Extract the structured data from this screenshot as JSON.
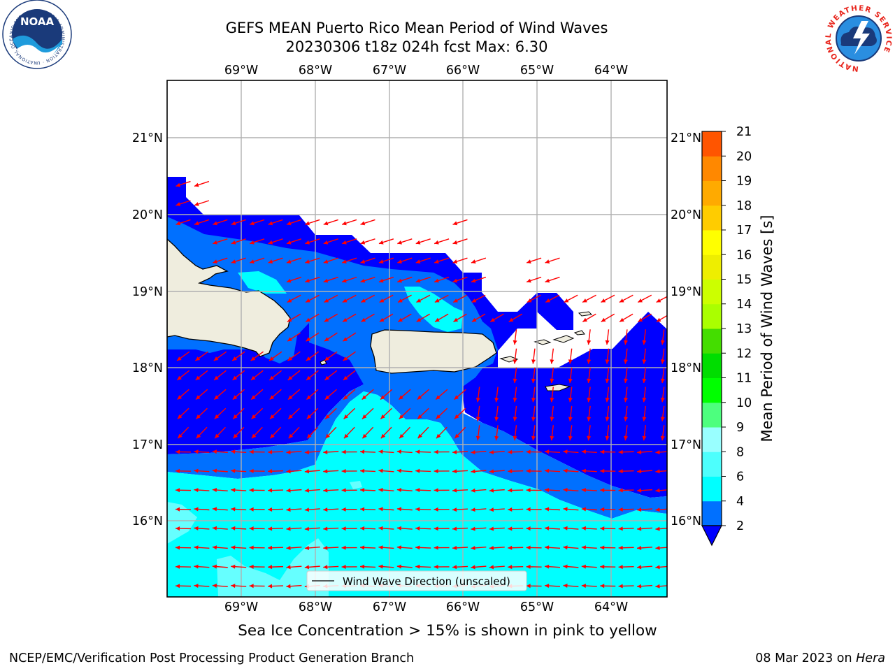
{
  "title": {
    "line1": "GEFS MEAN Puerto Rico Mean Period of Wind Waves",
    "line2": "20230306 t18z 024h fcst   Max: 6.30"
  },
  "map": {
    "region": "Puerto Rico",
    "lon_ticks": [
      "69°W",
      "68°W",
      "67°W",
      "66°W",
      "65°W",
      "64°W"
    ],
    "lat_ticks": [
      "21°N",
      "20°N",
      "19°N",
      "18°N",
      "17°N",
      "16°N"
    ],
    "land_color": "#efedde",
    "gridline_color": "#b0b0b0",
    "vector_color": "#ff0000",
    "legend_label": "Wind Wave Direction (unscaled)",
    "contour_levels": [
      {
        "range": "<2",
        "color": "#0000ff"
      },
      {
        "range": "2-4",
        "color": "#0070ff"
      },
      {
        "range": "4-6",
        "color": "#00ffff"
      },
      {
        "range": "6-8",
        "color": "#66ffff"
      }
    ]
  },
  "colorbar": {
    "label": "Mean Period of Wind Waves [s]",
    "ticks": [
      "2",
      "4",
      "6",
      "8",
      "9",
      "10",
      "11",
      "12",
      "13",
      "14",
      "15",
      "16",
      "17",
      "18",
      "19",
      "20",
      "21"
    ],
    "colors": [
      "#0070ff",
      "#00ffff",
      "#4dfffd",
      "#99ffff",
      "#4dff7e",
      "#00ff00",
      "#00dd00",
      "#44dd00",
      "#aaff00",
      "#ccff00",
      "#eeee00",
      "#ffff00",
      "#ffcc00",
      "#ffaa00",
      "#ff8800",
      "#ff5500",
      "#ff2200",
      "#ff0000"
    ],
    "extend_color": "#0000ff"
  },
  "caption": "Sea Ice Concentration > 15% is shown in pink to yellow",
  "footer": {
    "left": "NCEP/EMC/Verification Post Processing Product Generation Branch",
    "right_date": "08 Mar 2023 on ",
    "right_host": "Hera"
  },
  "logos": {
    "noaa": "NOAA",
    "noaa_ring": "NATIONAL OCEANIC AND ATMOSPHERIC ADMINISTRATION · U.S. DEPARTMENT OF COMMERCE ·",
    "nws_ring": "NATIONAL WEATHER SERVICE"
  }
}
